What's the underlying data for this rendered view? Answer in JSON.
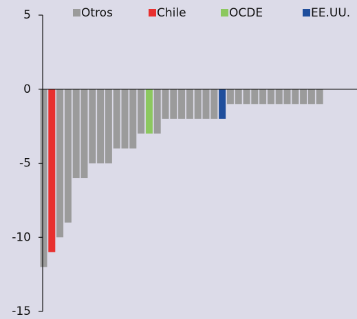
{
  "chart_data": {
    "type": "bar",
    "categories": [
      null,
      null,
      null,
      null,
      null,
      null,
      null,
      null,
      null,
      null,
      null,
      null,
      null,
      null,
      null,
      null,
      null,
      null,
      null,
      null,
      null,
      null,
      null,
      null,
      null,
      null,
      null,
      null,
      null,
      null,
      null,
      null,
      null,
      null,
      null
    ],
    "series": [
      {
        "name": "Otros",
        "color": "#9b9b9b",
        "values": [
          -12,
          null,
          -10,
          -9,
          -6,
          -6,
          -5,
          -5,
          -5,
          -4,
          -4,
          -4,
          -3,
          null,
          -3,
          -2,
          -2,
          -2,
          -2,
          -2,
          -2,
          -2,
          null,
          -1,
          -1,
          -1,
          -1,
          -1,
          -1,
          -1,
          -1,
          -1,
          -1,
          -1,
          -1
        ]
      },
      {
        "name": "Chile",
        "color": "#e8302f",
        "values": [
          null,
          -11,
          null,
          null,
          null,
          null,
          null,
          null,
          null,
          null,
          null,
          null,
          null,
          null,
          null,
          null,
          null,
          null,
          null,
          null,
          null,
          null,
          null,
          null,
          null,
          null,
          null,
          null,
          null,
          null,
          null,
          null,
          null,
          null,
          null
        ]
      },
      {
        "name": "OCDE",
        "color": "#8cc85f",
        "values": [
          null,
          null,
          null,
          null,
          null,
          null,
          null,
          null,
          null,
          null,
          null,
          null,
          null,
          -3,
          null,
          null,
          null,
          null,
          null,
          null,
          null,
          null,
          null,
          null,
          null,
          null,
          null,
          null,
          null,
          null,
          null,
          null,
          null,
          null,
          null
        ]
      },
      {
        "name": "EE.UU.",
        "color": "#1f4e9c",
        "values": [
          null,
          null,
          null,
          null,
          null,
          null,
          null,
          null,
          null,
          null,
          null,
          null,
          null,
          null,
          null,
          null,
          null,
          null,
          null,
          null,
          null,
          null,
          -2,
          null,
          null,
          null,
          null,
          null,
          null,
          null,
          null,
          null,
          null,
          null,
          null
        ]
      }
    ],
    "ylim": [
      -15,
      5
    ],
    "yticks": [
      5,
      0,
      -5,
      -10,
      -15
    ],
    "legend": "top"
  }
}
